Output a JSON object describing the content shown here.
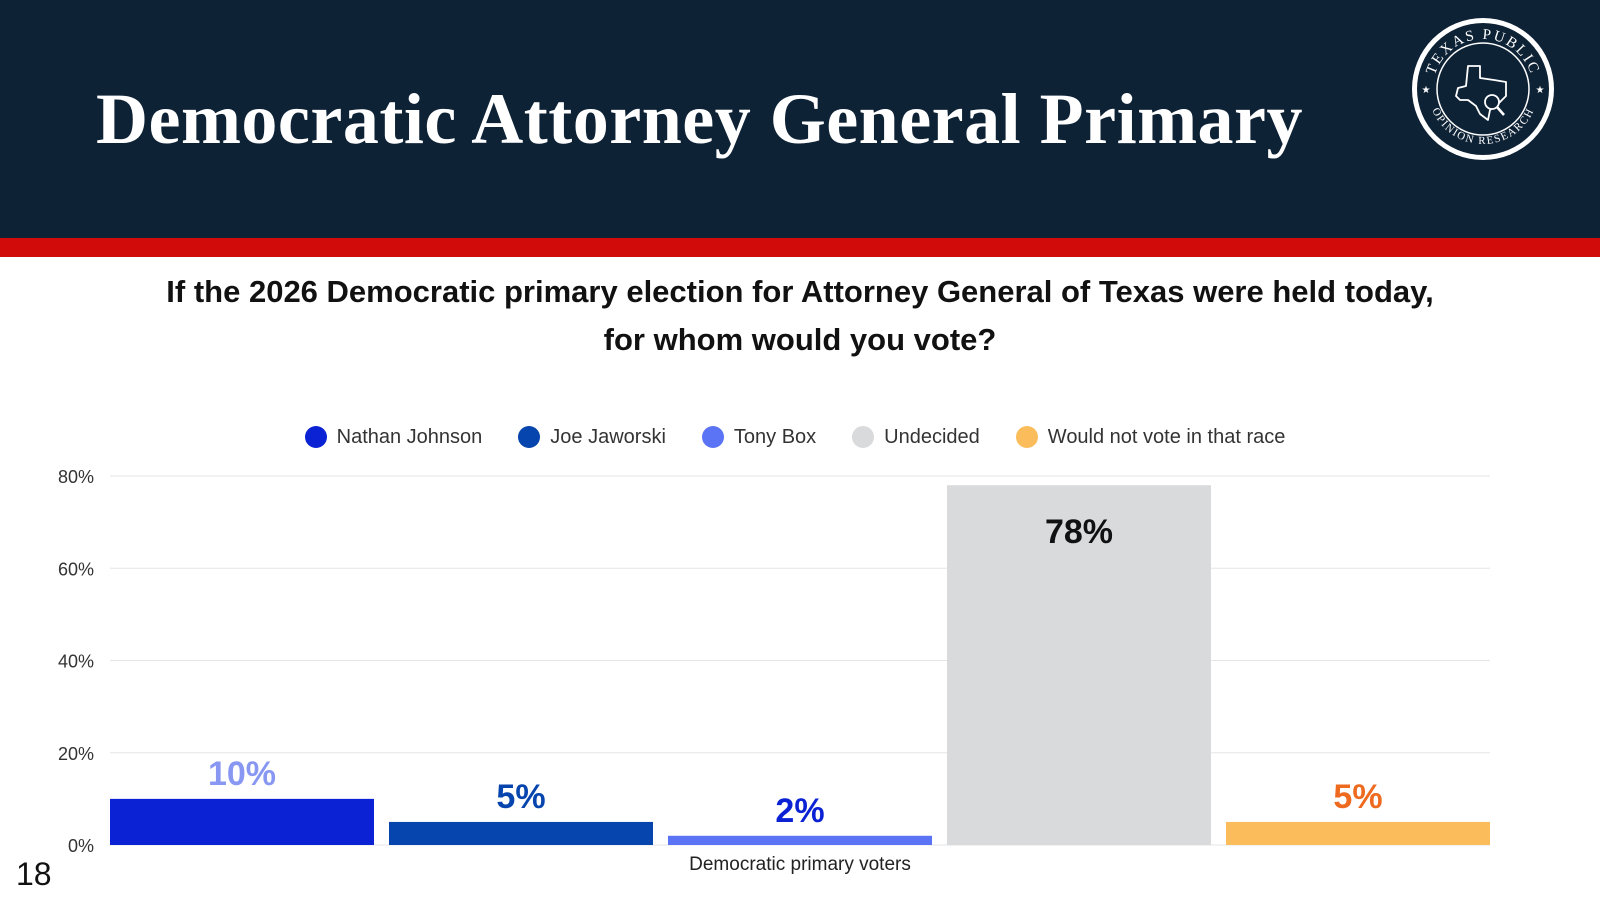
{
  "header": {
    "title": "Democratic Attorney General Primary",
    "background": "#0e2236",
    "accent": "#d10a0a"
  },
  "logo": {
    "top_text": "TEXAS PUBLIC",
    "bottom_text": "OPINION RESEARCH",
    "icon": "texas-magnifier-icon"
  },
  "question": {
    "text": "If the 2026 Democratic primary election for Attorney General of Texas were held today, for whom would you vote?"
  },
  "legend": [
    {
      "label": "Nathan Johnson",
      "color": "#0a22d4"
    },
    {
      "label": "Joe Jaworski",
      "color": "#0645ad"
    },
    {
      "label": "Tony Box",
      "color": "#5b74f5"
    },
    {
      "label": "Undecided",
      "color": "#d9dadc"
    },
    {
      "label": "Would not vote in that race",
      "color": "#fbbd5c"
    }
  ],
  "chart_data": {
    "type": "bar",
    "title": "If the 2026 Democratic primary election for Attorney General of Texas were held today, for whom would you vote?",
    "categories": [
      "Democratic primary voters"
    ],
    "xlabel": "Democratic primary voters",
    "ylabel": "",
    "ylim": [
      0,
      80
    ],
    "yticks": [
      "0%",
      "20%",
      "40%",
      "60%",
      "80%"
    ],
    "grid": true,
    "legend_position": "top-center",
    "series": [
      {
        "name": "Nathan Johnson",
        "values": [
          10
        ],
        "label": "10%",
        "color": "#0a22d4",
        "label_color": "#8898f2"
      },
      {
        "name": "Joe Jaworski",
        "values": [
          5
        ],
        "label": "5%",
        "color": "#0645ad",
        "label_color": "#0645ad"
      },
      {
        "name": "Tony Box",
        "values": [
          2
        ],
        "label": "2%",
        "color": "#5b74f5",
        "label_color": "#0a22d4"
      },
      {
        "name": "Undecided",
        "values": [
          78
        ],
        "label": "78%",
        "color": "#d9dadc",
        "label_color": "#111111"
      },
      {
        "name": "Would not vote in that race",
        "values": [
          5
        ],
        "label": "5%",
        "color": "#fbbd5c",
        "label_color": "#ee6a1f"
      }
    ]
  },
  "footer": {
    "page_number": "18"
  }
}
